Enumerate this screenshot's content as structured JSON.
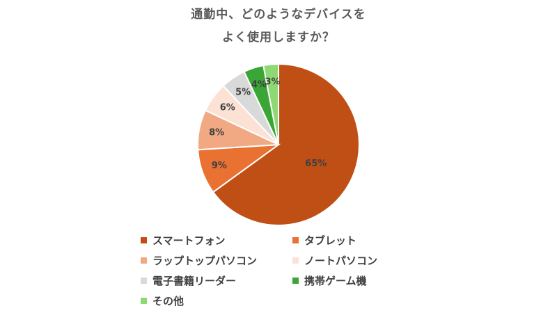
{
  "chart_data": {
    "type": "pie",
    "title_lines": [
      "通勤中、どのようなデバイスを",
      "よく使用しますか？"
    ],
    "slices": [
      {
        "label": "スマートフォン",
        "value": 65,
        "data_label": "65%",
        "color": "#C04F15"
      },
      {
        "label": "タブレット",
        "value": 9,
        "data_label": "9%",
        "color": "#E97132"
      },
      {
        "label": "ラップトップパソコン",
        "value": 8,
        "data_label": "8%",
        "color": "#F1A983"
      },
      {
        "label": "ノートパソコン",
        "value": 6,
        "data_label": "6%",
        "color": "#FBE2D5"
      },
      {
        "label": "電子書籍リーダー",
        "value": 5,
        "data_label": "5%",
        "color": "#D9D9D9"
      },
      {
        "label": "携帯ゲーム機",
        "value": 4,
        "data_label": "4%",
        "color": "#3AA635"
      },
      {
        "label": "その他",
        "value": 3,
        "data_label": "3%",
        "color": "#8ED973"
      }
    ],
    "legend_position": "bottom"
  }
}
